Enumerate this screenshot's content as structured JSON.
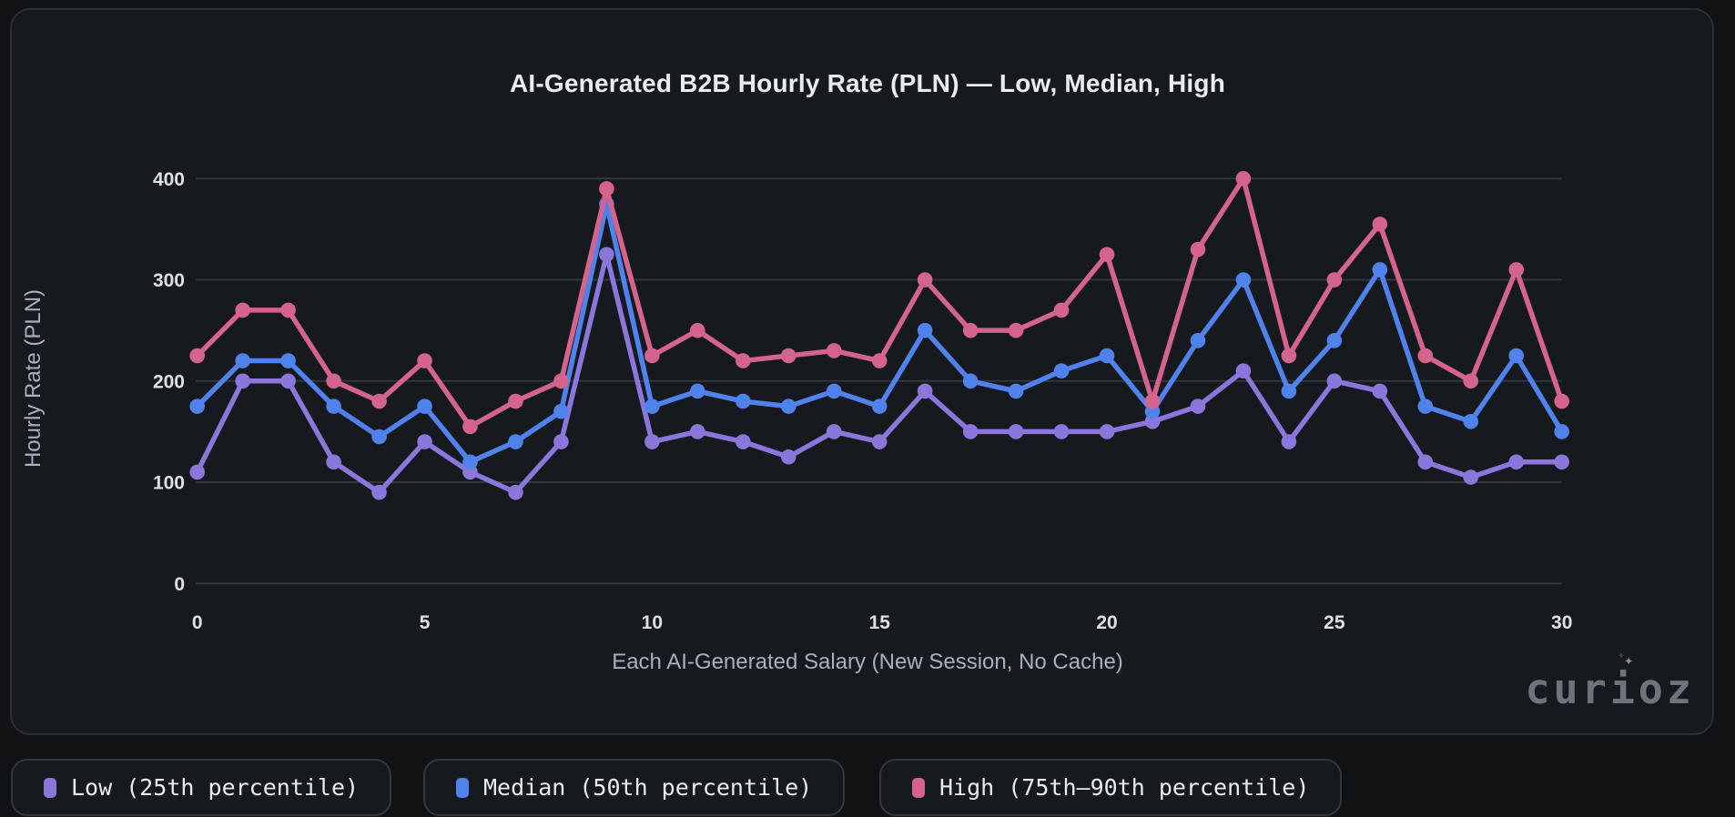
{
  "title": "AI-Generated B2B Hourly Rate (PLN) — Low, Median, High",
  "watermark": {
    "text": "curioz",
    "sparkle": "✦",
    "sparkle_small": "✧"
  },
  "colors": {
    "background": "#101214",
    "card": "#16191e",
    "card_border": "#2b2f36",
    "grid": "#31363d",
    "title": "#e9ecf0",
    "tick_label": "#dce1e7",
    "axis_title": "#a6b0bf",
    "low": "#8b76db",
    "median": "#4f82eb",
    "high": "#d4638d"
  },
  "chart_data": {
    "type": "line",
    "title": "AI-Generated B2B Hourly Rate (PLN) — Low, Median, High",
    "xlabel": "Each AI-Generated Salary (New Session, No Cache)",
    "ylabel": "Hourly Rate (PLN)",
    "x": [
      0,
      1,
      2,
      3,
      4,
      5,
      6,
      7,
      8,
      9,
      10,
      11,
      12,
      13,
      14,
      15,
      16,
      17,
      18,
      19,
      20,
      21,
      22,
      23,
      24,
      25,
      26,
      27,
      28,
      29,
      30
    ],
    "xticks": [
      0,
      5,
      10,
      15,
      20,
      25,
      30
    ],
    "yticks": [
      0,
      100,
      200,
      300,
      400
    ],
    "ylim": [
      0,
      400
    ],
    "grid": true,
    "legend_position": "bottom",
    "series": [
      {
        "name": "Low (25th percentile)",
        "color": "#8b76db",
        "values": [
          110,
          200,
          200,
          120,
          90,
          140,
          110,
          90,
          140,
          325,
          140,
          150,
          140,
          125,
          150,
          140,
          190,
          150,
          150,
          150,
          150,
          160,
          175,
          210,
          140,
          200,
          190,
          120,
          105,
          120,
          120
        ]
      },
      {
        "name": "Median (50th percentile)",
        "color": "#4f82eb",
        "values": [
          175,
          220,
          220,
          175,
          145,
          175,
          120,
          140,
          170,
          375,
          175,
          190,
          180,
          175,
          190,
          175,
          250,
          200,
          190,
          210,
          225,
          170,
          240,
          300,
          190,
          240,
          310,
          175,
          160,
          225,
          150
        ]
      },
      {
        "name": "High (75th–90th percentile)",
        "color": "#d4638d",
        "values": [
          225,
          270,
          270,
          200,
          180,
          220,
          155,
          180,
          200,
          390,
          225,
          250,
          220,
          225,
          230,
          220,
          300,
          250,
          250,
          270,
          325,
          180,
          330,
          400,
          225,
          300,
          355,
          225,
          200,
          310,
          180
        ]
      }
    ]
  },
  "legend": {
    "items": [
      {
        "label": "Low (25th percentile)",
        "color": "#8b76db"
      },
      {
        "label": "Median (50th percentile)",
        "color": "#4f82eb"
      },
      {
        "label": "High (75th–90th percentile)",
        "color": "#d4638d"
      }
    ]
  }
}
